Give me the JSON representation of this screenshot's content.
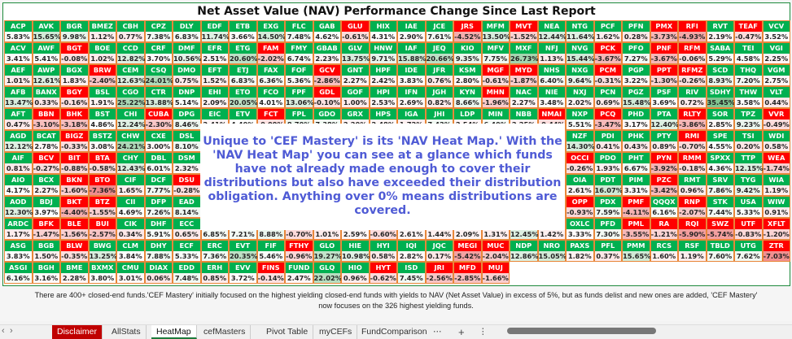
{
  "title": "Net Asset Value (NAV) Performance Change Since Last Report",
  "colors": {
    "positive_header": "#00b050",
    "negative_header": "#ff0000",
    "cell_border": "#e8873a",
    "overlay_text": "#4f5bd5"
  },
  "heatmap": {
    "rows": [
      {
        "tickers": [
          "ACP",
          "AVK",
          "BGR",
          "BMEZ",
          "CBH",
          "CPZ",
          "DLY",
          "EDF",
          "ETB",
          "EXG",
          "FLC",
          "GAB",
          "GLU",
          "HIX",
          "IAE",
          "JCE",
          "JRS",
          "MFM",
          "MVT",
          "NEA",
          "NTG",
          "PCF",
          "PFN",
          "PMX",
          "RFI",
          "RVT",
          "TEAF",
          "VCV"
        ],
        "values": [
          "5.83%",
          "15.65%",
          "9.98%",
          "1.12%",
          "0.77%",
          "7.38%",
          "6.83%",
          "11.74%",
          "3.66%",
          "14.50%",
          "7.48%",
          "4.62%",
          "-0.61%",
          "4.31%",
          "2.90%",
          "7.61%",
          "-4.52%",
          "13.50%",
          "-1.52%",
          "12.44%",
          "11.64%",
          "1.62%",
          "0.28%",
          "-3.73%",
          "-4.93%",
          "2.19%",
          "-0.47%",
          "3.52%"
        ]
      },
      {
        "tickers": [
          "ACV",
          "AWF",
          "BGT",
          "BOE",
          "CCD",
          "CRF",
          "DMF",
          "EFR",
          "ETG",
          "FAM",
          "FMY",
          "GBAB",
          "GLV",
          "HNW",
          "IAF",
          "JEQ",
          "KIO",
          "MFV",
          "MXF",
          "NFJ",
          "NVG",
          "PCK",
          "PFO",
          "PNF",
          "RFM",
          "SABA",
          "TEI",
          "VGI"
        ],
        "values": [
          "3.41%",
          "5.41%",
          "-0.08%",
          "1.02%",
          "12.82%",
          "3.70%",
          "10.56%",
          "2.51%",
          "20.60%",
          "-2.02%",
          "6.74%",
          "2.23%",
          "13.75%",
          "9.71%",
          "15.88%",
          "20.66%",
          "9.35%",
          "7.75%",
          "26.73%",
          "1.13%",
          "15.44%",
          "-3.67%",
          "7.27%",
          "-3.67%",
          "-0.06%",
          "5.29%",
          "4.58%",
          "2.25%"
        ]
      },
      {
        "tickers": [
          "AEF",
          "AWP",
          "BGX",
          "BRW",
          "CEM",
          "CSQ",
          "DMO",
          "EFT",
          "ETJ",
          "FAX",
          "FOF",
          "GCV",
          "GNT",
          "HPF",
          "IDE",
          "JFR",
          "KSM",
          "MGF",
          "MYD",
          "NHS",
          "NXG",
          "PCM",
          "PGP",
          "PPT",
          "RFMZ",
          "SCD",
          "THQ",
          "VGM"
        ],
        "values": [
          "1.01%",
          "12.61%",
          "1.83%",
          "-2.40%",
          "12.63%",
          "24.01%",
          "0.75%",
          "1.52%",
          "6.83%",
          "6.36%",
          "5.36%",
          "-2.86%",
          "2.27%",
          "2.42%",
          "3.83%",
          "0.76%",
          "2.80%",
          "-0.61%",
          "-1.87%",
          "6.40%",
          "9.64%",
          "-0.31%",
          "3.22%",
          "-1.30%",
          "-0.26%",
          "8.93%",
          "7.20%",
          "2.75%"
        ]
      },
      {
        "tickers": [
          "AFB",
          "BANX",
          "BGY",
          "BSL",
          "CGO",
          "CTR",
          "DNP",
          "EHI",
          "ETO",
          "FCO",
          "FPF",
          "GDL",
          "GOF",
          "HPI",
          "IFN",
          "JGH",
          "KYN",
          "MHN",
          "NAC",
          "NIE",
          "NXJ",
          "PCN",
          "PGZ",
          "PSF",
          "RIV",
          "SDHY",
          "THW",
          "VLT"
        ],
        "values": [
          "13.47%",
          "0.33%",
          "-0.16%",
          "1.91%",
          "25.22%",
          "13.88%",
          "5.14%",
          "2.09%",
          "20.05%",
          "4.01%",
          "13.06%",
          "-0.10%",
          "1.00%",
          "2.53%",
          "2.69%",
          "0.82%",
          "8.66%",
          "-1.96%",
          "2.27%",
          "3.48%",
          "2.02%",
          "0.69%",
          "15.48%",
          "3.69%",
          "0.72%",
          "35.45%",
          "3.58%",
          "0.44%"
        ]
      },
      {
        "tickers": [
          "AFT",
          "BBN",
          "BHK",
          "BST",
          "CHI",
          "CUBA",
          "DPG",
          "EIC",
          "ETV",
          "FCT",
          "FPL",
          "GDO",
          "GRX",
          "HPS",
          "IGA",
          "JHI",
          "LDP",
          "MIN",
          "NBB",
          "NMAI",
          "NXP",
          "PCQ",
          "PHD",
          "PTA",
          "RLTY",
          "SOR",
          "TPZ",
          "VVR"
        ],
        "values": [
          "0.47%",
          "-3.10%",
          "-3.18%",
          "4.86%",
          "12.24%",
          "-2.30%",
          "8.46%",
          "2.41%",
          "4.40%",
          "-0.09%",
          "8.70%",
          "7.38%",
          "2.20%",
          "2.48%",
          "1.72%",
          "7.42%",
          "2.54%",
          "6.40%",
          "2.25%",
          "-0.44%",
          "5.51%",
          "-3.47%",
          "3.17%",
          "12.40%",
          "-3.86%",
          "2.85%",
          "9.23%",
          "-0.49%"
        ]
      },
      {
        "tickers": [
          "AGD",
          "BCAT",
          "BIGZ",
          "BSTZ",
          "CHW",
          "CXE",
          "DSL",
          null,
          null,
          null,
          null,
          null,
          null,
          null,
          null,
          null,
          null,
          null,
          null,
          null,
          "NZF",
          "PDI",
          "PHK",
          "PTY",
          "RMI",
          "SPE",
          "TSI",
          "WDI"
        ],
        "values": [
          "12.12%",
          "2.78%",
          "-0.33%",
          "3.08%",
          "24.21%",
          "3.00%",
          "8.10%",
          null,
          null,
          null,
          null,
          null,
          null,
          null,
          null,
          null,
          null,
          null,
          null,
          null,
          "14.30%",
          "0.41%",
          "0.43%",
          "0.89%",
          "-0.70%",
          "4.55%",
          "0.20%",
          "0.58%"
        ]
      },
      {
        "tickers": [
          "AIF",
          "BCV",
          "BIT",
          "BTA",
          "CHY",
          "DBL",
          "DSM",
          null,
          null,
          null,
          null,
          null,
          null,
          null,
          null,
          null,
          null,
          null,
          null,
          null,
          "OCCI",
          "PDO",
          "PHT",
          "PYN",
          "RMM",
          "SPXX",
          "TTP",
          "WEA"
        ],
        "values": [
          "0.81%",
          "-0.27%",
          "-0.88%",
          "-0.58%",
          "12.43%",
          "6.01%",
          "2.32%",
          null,
          null,
          null,
          null,
          null,
          null,
          null,
          null,
          null,
          null,
          null,
          null,
          null,
          "-0.26%",
          "1.93%",
          "6.67%",
          "-3.92%",
          "-0.18%",
          "4.36%",
          "12.15%",
          "-1.74%"
        ]
      },
      {
        "tickers": [
          "AIO",
          "BCX",
          "BKN",
          "BTO",
          "CIF",
          "DCF",
          "DSU",
          null,
          null,
          null,
          null,
          null,
          null,
          null,
          null,
          null,
          null,
          null,
          null,
          null,
          "OIA",
          "PDT",
          "PIM",
          "PZC",
          "RMT",
          "SRV",
          "TYG",
          "WIA"
        ],
        "values": [
          "4.17%",
          "2.27%",
          "-1.60%",
          "-7.36%",
          "1.65%",
          "7.77%",
          "-0.28%",
          null,
          null,
          null,
          null,
          null,
          null,
          null,
          null,
          null,
          null,
          null,
          null,
          null,
          "2.61%",
          "16.07%",
          "3.31%",
          "-3.42%",
          "0.96%",
          "7.86%",
          "9.42%",
          "1.19%"
        ]
      },
      {
        "tickers": [
          "AOD",
          "BDJ",
          "BKT",
          "BTZ",
          "CII",
          "DFP",
          "EAD",
          null,
          null,
          null,
          null,
          null,
          null,
          null,
          null,
          null,
          null,
          null,
          null,
          null,
          "OPP",
          "PDX",
          "PMF",
          "QQQX",
          "RNP",
          "STK",
          "USA",
          "WIW"
        ],
        "values": [
          "12.30%",
          "3.97%",
          "-4.40%",
          "-1.55%",
          "4.69%",
          "7.26%",
          "8.14%",
          null,
          null,
          null,
          null,
          null,
          null,
          null,
          null,
          null,
          null,
          null,
          null,
          null,
          "-0.93%",
          "7.59%",
          "-4.11%",
          "6.16%",
          "-2.07%",
          "7.44%",
          "5.33%",
          "0.91%"
        ]
      },
      {
        "tickers": [
          "ARDC",
          "BFK",
          "BLE",
          "BUI",
          "CIK",
          "DHF",
          "ECC",
          null,
          null,
          null,
          null,
          null,
          null,
          null,
          null,
          null,
          null,
          null,
          null,
          null,
          "OXLC",
          "PFD",
          "PML",
          "RA",
          "RQI",
          "SWZ",
          "UTF",
          "XFLT"
        ],
        "values": [
          "1.17%",
          "-1.47%",
          "-1.56%",
          "-2.57%",
          "0.34%",
          "5.91%",
          "0.65%",
          "6.85%",
          "7.21%",
          "8.88%",
          "-0.70%",
          "1.01%",
          "2.59%",
          "-0.60%",
          "2.61%",
          "1.44%",
          "2.09%",
          "1.31%",
          "12.45%",
          "1.42%",
          "3.33%",
          "7.30%",
          "-3.55%",
          "-1.21%",
          "-5.90%",
          "-5.74%",
          "-0.83%",
          "-1.20%"
        ]
      },
      {
        "tickers": [
          "ASG",
          "BGB",
          "BLW",
          "BWG",
          "CLM",
          "DHY",
          "ECF",
          "ERC",
          "EVT",
          "FIF",
          "FTHY",
          "GLO",
          "HIE",
          "HYI",
          "IQI",
          "JQC",
          "MEGI",
          "MUC",
          "NDP",
          "NRO",
          "PAXS",
          "PFL",
          "PMM",
          "RCS",
          "RSF",
          "TBLD",
          "UTG",
          "ZTR"
        ],
        "values": [
          "3.83%",
          "1.50%",
          "-0.35%",
          "13.25%",
          "3.84%",
          "7.88%",
          "5.33%",
          "7.36%",
          "20.35%",
          "5.46%",
          "-0.96%",
          "19.27%",
          "10.98%",
          "0.58%",
          "2.82%",
          "0.17%",
          "-5.42%",
          "-2.04%",
          "12.86%",
          "15.05%",
          "1.82%",
          "0.37%",
          "15.65%",
          "1.60%",
          "1.19%",
          "7.60%",
          "7.62%",
          "-7.03%"
        ]
      },
      {
        "tickers": [
          "ASGI",
          "BGH",
          "BME",
          "BXMX",
          "CMU",
          "DIAX",
          "EDD",
          "ERH",
          "EVV",
          "FINS",
          "FUND",
          "GLQ",
          "HIO",
          "HYT",
          "ISD",
          "JRI",
          "MFD",
          "MUJ"
        ],
        "values": [
          "6.16%",
          "3.16%",
          "2.28%",
          "3.80%",
          "3.01%",
          "0.06%",
          "7.48%",
          "0.85%",
          "3.72%",
          "-0.14%",
          "2.47%",
          "22.02%",
          "0.96%",
          "-0.62%",
          "7.45%",
          "-2.56%",
          "-2.85%",
          "-1.66%"
        ]
      }
    ]
  },
  "overlay": {
    "lines": [
      "Unique to 'CEF Mastery' is its 'NAV Heat Map.'  With the",
      "'NAV Heat Map' you can see at a glance which funds",
      "have not already made enough to cover their",
      "distributions but also have exceeded their distribution",
      "obligation.  Anything over 0% means distributions are",
      "covered."
    ]
  },
  "footer_note": {
    "line1": "There are 400+ closed-end funds.'CEF Mastery' initially focused on the highest yielding closed-end funds with yields to NAV (Net Asset Value) in excess of 5%, but as funds delist and new ones are added, 'CEF Mastery'",
    "line2": "now focuses on the 326 highest yielding funds."
  },
  "tabbar": {
    "prev": "‹",
    "next": "›",
    "tabs": [
      "Disclaimer",
      "AllStats",
      "HeatMap",
      "cefMasters",
      "Pivot Table",
      "myCEFs",
      "FundComparison"
    ],
    "more": "⋯",
    "add": "+",
    "options": "⋮"
  }
}
